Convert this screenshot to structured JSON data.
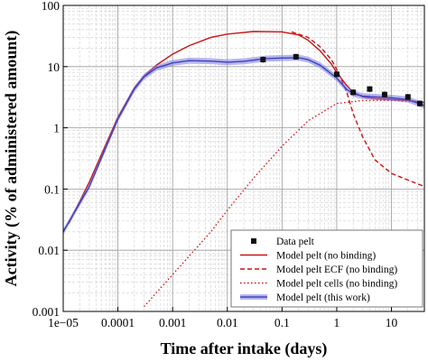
{
  "chart_data": {
    "type": "line",
    "xlabel": "Time after intake (days)",
    "ylabel": "Activity (% of administered amount)",
    "x_scale": "log",
    "y_scale": "log",
    "xlim": [
      1e-05,
      40
    ],
    "ylim": [
      0.001,
      100
    ],
    "grid": true,
    "legend_position": "lower-right",
    "x_tick_labels": [
      "1e−05",
      "0.0001",
      "0.001",
      "0.01",
      "0.1",
      "1",
      "10"
    ],
    "x_tick_values": [
      1e-05,
      0.0001,
      0.001,
      0.01,
      0.1,
      1,
      10
    ],
    "y_tick_labels": [
      "0.001",
      "0.01",
      "0.1",
      "1",
      "10",
      "100"
    ],
    "y_tick_values": [
      0.001,
      0.01,
      0.1,
      1,
      10,
      100
    ],
    "series": [
      {
        "name": "Data pelt",
        "style": "marker",
        "color": "#111111",
        "x": [
          0.045,
          0.18,
          1.0,
          2.0,
          4.0,
          7.5,
          20.0,
          33.0
        ],
        "y": [
          13.0,
          14.5,
          7.5,
          3.8,
          4.3,
          3.5,
          3.2,
          2.5
        ]
      },
      {
        "name": "Model pelt (no binding)",
        "style": "solid",
        "color": "#cc1111",
        "x": [
          1.25e-05,
          3e-05,
          0.0001,
          0.0002,
          0.0003,
          0.0005,
          0.001,
          0.002,
          0.005,
          0.01,
          0.03,
          0.1,
          0.2,
          0.3,
          0.5,
          0.8,
          1.0,
          1.5,
          2.0,
          3.0,
          5.0,
          10.0,
          20.0,
          40.0
        ],
        "y": [
          0.027,
          0.13,
          1.5,
          4.5,
          7.0,
          10.5,
          16.0,
          22.0,
          30.0,
          34.0,
          37.5,
          37.0,
          33.0,
          27.0,
          18.0,
          11.0,
          8.0,
          5.0,
          3.8,
          3.2,
          3.0,
          2.9,
          2.8,
          2.6
        ]
      },
      {
        "name": "Model pelt ECF (no binding)",
        "style": "dashed",
        "color": "#cc1111",
        "x": [
          0.15,
          0.3,
          0.5,
          0.8,
          1.0,
          1.5,
          2.0,
          3.0,
          5.0,
          10.0,
          20.0,
          40.0
        ],
        "y": [
          37.0,
          30.0,
          21.0,
          13.0,
          9.0,
          4.0,
          1.7,
          0.7,
          0.3,
          0.18,
          0.14,
          0.11
        ]
      },
      {
        "name": "Model pelt cells (no binding)",
        "style": "dotted",
        "color": "#cc1111",
        "x": [
          0.0003,
          0.0005,
          0.001,
          0.002,
          0.005,
          0.01,
          0.03,
          0.1,
          0.3,
          1.0,
          3.0,
          10.0,
          40.0
        ],
        "y": [
          0.0012,
          0.002,
          0.004,
          0.008,
          0.02,
          0.045,
          0.15,
          0.5,
          1.3,
          2.5,
          2.8,
          2.8,
          2.6
        ]
      },
      {
        "name": "Model pelt (this work)",
        "style": "solid-band",
        "color": "#4040c0",
        "x": [
          1e-05,
          3e-05,
          0.0001,
          0.0002,
          0.0003,
          0.0005,
          0.001,
          0.002,
          0.005,
          0.01,
          0.02,
          0.05,
          0.1,
          0.2,
          0.3,
          0.5,
          1.0,
          1.5,
          2.0,
          3.0,
          5.0,
          10.0,
          20.0,
          40.0
        ],
        "y": [
          0.02,
          0.11,
          1.4,
          4.3,
          6.8,
          9.5,
          11.5,
          12.5,
          12.3,
          11.8,
          12.2,
          13.5,
          13.8,
          14.0,
          13.0,
          10.5,
          6.5,
          4.3,
          3.6,
          3.3,
          3.2,
          3.1,
          2.9,
          2.3
        ],
        "band_ratio": 1.12
      }
    ]
  }
}
